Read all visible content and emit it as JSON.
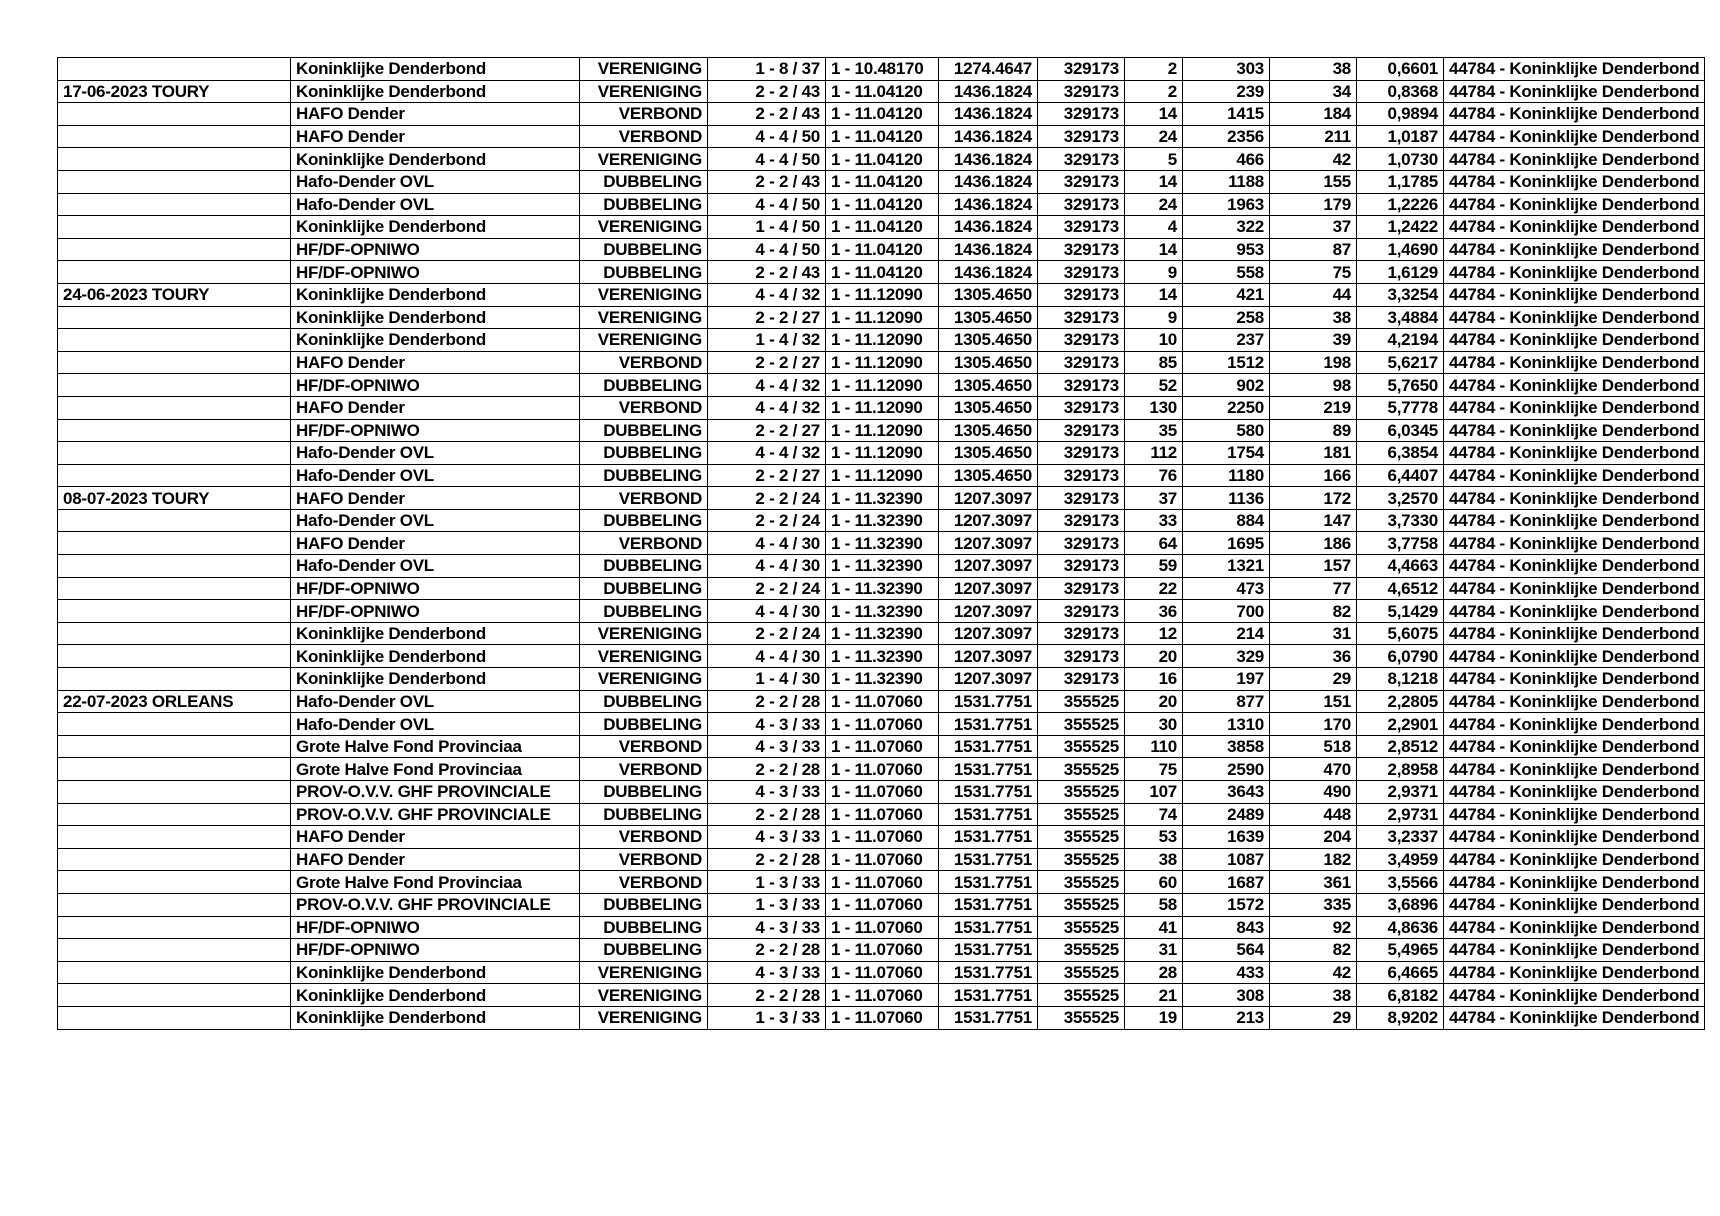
{
  "table": {
    "rows": [
      [
        "",
        "Koninklijke Denderbond",
        "VERENIGING",
        "1 - 8 / 37",
        "1 - 10.48170",
        "1274.4647",
        "329173",
        "2",
        "303",
        "38",
        "0,6601",
        "44784 - Koninklijke Denderbond"
      ],
      [
        "17-06-2023 TOURY",
        "Koninklijke Denderbond",
        "VERENIGING",
        "2 - 2 / 43",
        "1 - 11.04120",
        "1436.1824",
        "329173",
        "2",
        "239",
        "34",
        "0,8368",
        "44784 - Koninklijke Denderbond"
      ],
      [
        "",
        "HAFO Dender",
        "VERBOND",
        "2 - 2 / 43",
        "1 - 11.04120",
        "1436.1824",
        "329173",
        "14",
        "1415",
        "184",
        "0,9894",
        "44784 - Koninklijke Denderbond"
      ],
      [
        "",
        "HAFO Dender",
        "VERBOND",
        "4 - 4 / 50",
        "1 - 11.04120",
        "1436.1824",
        "329173",
        "24",
        "2356",
        "211",
        "1,0187",
        "44784 - Koninklijke Denderbond"
      ],
      [
        "",
        "Koninklijke Denderbond",
        "VERENIGING",
        "4 - 4 / 50",
        "1 - 11.04120",
        "1436.1824",
        "329173",
        "5",
        "466",
        "42",
        "1,0730",
        "44784 - Koninklijke Denderbond"
      ],
      [
        "",
        "Hafo-Dender OVL",
        "DUBBELING",
        "2 - 2 / 43",
        "1 - 11.04120",
        "1436.1824",
        "329173",
        "14",
        "1188",
        "155",
        "1,1785",
        "44784 - Koninklijke Denderbond"
      ],
      [
        "",
        "Hafo-Dender OVL",
        "DUBBELING",
        "4 - 4 / 50",
        "1 - 11.04120",
        "1436.1824",
        "329173",
        "24",
        "1963",
        "179",
        "1,2226",
        "44784 - Koninklijke Denderbond"
      ],
      [
        "",
        "Koninklijke Denderbond",
        "VERENIGING",
        "1 - 4 / 50",
        "1 - 11.04120",
        "1436.1824",
        "329173",
        "4",
        "322",
        "37",
        "1,2422",
        "44784 - Koninklijke Denderbond"
      ],
      [
        "",
        "HF/DF-OPNIWO",
        "DUBBELING",
        "4 - 4 / 50",
        "1 - 11.04120",
        "1436.1824",
        "329173",
        "14",
        "953",
        "87",
        "1,4690",
        "44784 - Koninklijke Denderbond"
      ],
      [
        "",
        "HF/DF-OPNIWO",
        "DUBBELING",
        "2 - 2 / 43",
        "1 - 11.04120",
        "1436.1824",
        "329173",
        "9",
        "558",
        "75",
        "1,6129",
        "44784 - Koninklijke Denderbond"
      ],
      [
        "24-06-2023 TOURY",
        "Koninklijke Denderbond",
        "VERENIGING",
        "4 - 4 / 32",
        "1 - 11.12090",
        "1305.4650",
        "329173",
        "14",
        "421",
        "44",
        "3,3254",
        "44784 - Koninklijke Denderbond"
      ],
      [
        "",
        "Koninklijke Denderbond",
        "VERENIGING",
        "2 - 2 / 27",
        "1 - 11.12090",
        "1305.4650",
        "329173",
        "9",
        "258",
        "38",
        "3,4884",
        "44784 - Koninklijke Denderbond"
      ],
      [
        "",
        "Koninklijke Denderbond",
        "VERENIGING",
        "1 - 4 / 32",
        "1 - 11.12090",
        "1305.4650",
        "329173",
        "10",
        "237",
        "39",
        "4,2194",
        "44784 - Koninklijke Denderbond"
      ],
      [
        "",
        "HAFO Dender",
        "VERBOND",
        "2 - 2 / 27",
        "1 - 11.12090",
        "1305.4650",
        "329173",
        "85",
        "1512",
        "198",
        "5,6217",
        "44784 - Koninklijke Denderbond"
      ],
      [
        "",
        "HF/DF-OPNIWO",
        "DUBBELING",
        "4 - 4 / 32",
        "1 - 11.12090",
        "1305.4650",
        "329173",
        "52",
        "902",
        "98",
        "5,7650",
        "44784 - Koninklijke Denderbond"
      ],
      [
        "",
        "HAFO Dender",
        "VERBOND",
        "4 - 4 / 32",
        "1 - 11.12090",
        "1305.4650",
        "329173",
        "130",
        "2250",
        "219",
        "5,7778",
        "44784 - Koninklijke Denderbond"
      ],
      [
        "",
        "HF/DF-OPNIWO",
        "DUBBELING",
        "2 - 2 / 27",
        "1 - 11.12090",
        "1305.4650",
        "329173",
        "35",
        "580",
        "89",
        "6,0345",
        "44784 - Koninklijke Denderbond"
      ],
      [
        "",
        "Hafo-Dender OVL",
        "DUBBELING",
        "4 - 4 / 32",
        "1 - 11.12090",
        "1305.4650",
        "329173",
        "112",
        "1754",
        "181",
        "6,3854",
        "44784 - Koninklijke Denderbond"
      ],
      [
        "",
        "Hafo-Dender OVL",
        "DUBBELING",
        "2 - 2 / 27",
        "1 - 11.12090",
        "1305.4650",
        "329173",
        "76",
        "1180",
        "166",
        "6,4407",
        "44784 - Koninklijke Denderbond"
      ],
      [
        "08-07-2023 TOURY",
        "HAFO Dender",
        "VERBOND",
        "2 - 2 / 24",
        "1 - 11.32390",
        "1207.3097",
        "329173",
        "37",
        "1136",
        "172",
        "3,2570",
        "44784 - Koninklijke Denderbond"
      ],
      [
        "",
        "Hafo-Dender OVL",
        "DUBBELING",
        "2 - 2 / 24",
        "1 - 11.32390",
        "1207.3097",
        "329173",
        "33",
        "884",
        "147",
        "3,7330",
        "44784 - Koninklijke Denderbond"
      ],
      [
        "",
        "HAFO Dender",
        "VERBOND",
        "4 - 4 / 30",
        "1 - 11.32390",
        "1207.3097",
        "329173",
        "64",
        "1695",
        "186",
        "3,7758",
        "44784 - Koninklijke Denderbond"
      ],
      [
        "",
        "Hafo-Dender OVL",
        "DUBBELING",
        "4 - 4 / 30",
        "1 - 11.32390",
        "1207.3097",
        "329173",
        "59",
        "1321",
        "157",
        "4,4663",
        "44784 - Koninklijke Denderbond"
      ],
      [
        "",
        "HF/DF-OPNIWO",
        "DUBBELING",
        "2 - 2 / 24",
        "1 - 11.32390",
        "1207.3097",
        "329173",
        "22",
        "473",
        "77",
        "4,6512",
        "44784 - Koninklijke Denderbond"
      ],
      [
        "",
        "HF/DF-OPNIWO",
        "DUBBELING",
        "4 - 4 / 30",
        "1 - 11.32390",
        "1207.3097",
        "329173",
        "36",
        "700",
        "82",
        "5,1429",
        "44784 - Koninklijke Denderbond"
      ],
      [
        "",
        "Koninklijke Denderbond",
        "VERENIGING",
        "2 - 2 / 24",
        "1 - 11.32390",
        "1207.3097",
        "329173",
        "12",
        "214",
        "31",
        "5,6075",
        "44784 - Koninklijke Denderbond"
      ],
      [
        "",
        "Koninklijke Denderbond",
        "VERENIGING",
        "4 - 4 / 30",
        "1 - 11.32390",
        "1207.3097",
        "329173",
        "20",
        "329",
        "36",
        "6,0790",
        "44784 - Koninklijke Denderbond"
      ],
      [
        "",
        "Koninklijke Denderbond",
        "VERENIGING",
        "1 - 4 / 30",
        "1 - 11.32390",
        "1207.3097",
        "329173",
        "16",
        "197",
        "29",
        "8,1218",
        "44784 - Koninklijke Denderbond"
      ],
      [
        "22-07-2023 ORLEANS",
        "Hafo-Dender OVL",
        "DUBBELING",
        "2 - 2 / 28",
        "1 - 11.07060",
        "1531.7751",
        "355525",
        "20",
        "877",
        "151",
        "2,2805",
        "44784 - Koninklijke Denderbond"
      ],
      [
        "",
        "Hafo-Dender OVL",
        "DUBBELING",
        "4 - 3 / 33",
        "1 - 11.07060",
        "1531.7751",
        "355525",
        "30",
        "1310",
        "170",
        "2,2901",
        "44784 - Koninklijke Denderbond"
      ],
      [
        "",
        "Grote Halve Fond Provinciaa",
        "VERBOND",
        "4 - 3 / 33",
        "1 - 11.07060",
        "1531.7751",
        "355525",
        "110",
        "3858",
        "518",
        "2,8512",
        "44784 - Koninklijke Denderbond"
      ],
      [
        "",
        "Grote Halve Fond Provinciaa",
        "VERBOND",
        "2 - 2 / 28",
        "1 - 11.07060",
        "1531.7751",
        "355525",
        "75",
        "2590",
        "470",
        "2,8958",
        "44784 - Koninklijke Denderbond"
      ],
      [
        "",
        "PROV-O.V.V. GHF PROVINCIALE",
        "DUBBELING",
        "4 - 3 / 33",
        "1 - 11.07060",
        "1531.7751",
        "355525",
        "107",
        "3643",
        "490",
        "2,9371",
        "44784 - Koninklijke Denderbond"
      ],
      [
        "",
        "PROV-O.V.V. GHF PROVINCIALE",
        "DUBBELING",
        "2 - 2 / 28",
        "1 - 11.07060",
        "1531.7751",
        "355525",
        "74",
        "2489",
        "448",
        "2,9731",
        "44784 - Koninklijke Denderbond"
      ],
      [
        "",
        "HAFO Dender",
        "VERBOND",
        "4 - 3 / 33",
        "1 - 11.07060",
        "1531.7751",
        "355525",
        "53",
        "1639",
        "204",
        "3,2337",
        "44784 - Koninklijke Denderbond"
      ],
      [
        "",
        "HAFO Dender",
        "VERBOND",
        "2 - 2 / 28",
        "1 - 11.07060",
        "1531.7751",
        "355525",
        "38",
        "1087",
        "182",
        "3,4959",
        "44784 - Koninklijke Denderbond"
      ],
      [
        "",
        "Grote Halve Fond Provinciaa",
        "VERBOND",
        "1 - 3 / 33",
        "1 - 11.07060",
        "1531.7751",
        "355525",
        "60",
        "1687",
        "361",
        "3,5566",
        "44784 - Koninklijke Denderbond"
      ],
      [
        "",
        "PROV-O.V.V. GHF PROVINCIALE",
        "DUBBELING",
        "1 - 3 / 33",
        "1 - 11.07060",
        "1531.7751",
        "355525",
        "58",
        "1572",
        "335",
        "3,6896",
        "44784 - Koninklijke Denderbond"
      ],
      [
        "",
        "HF/DF-OPNIWO",
        "DUBBELING",
        "4 - 3 / 33",
        "1 - 11.07060",
        "1531.7751",
        "355525",
        "41",
        "843",
        "92",
        "4,8636",
        "44784 - Koninklijke Denderbond"
      ],
      [
        "",
        "HF/DF-OPNIWO",
        "DUBBELING",
        "2 - 2 / 28",
        "1 - 11.07060",
        "1531.7751",
        "355525",
        "31",
        "564",
        "82",
        "5,4965",
        "44784 - Koninklijke Denderbond"
      ],
      [
        "",
        "Koninklijke Denderbond",
        "VERENIGING",
        "4 - 3 / 33",
        "1 - 11.07060",
        "1531.7751",
        "355525",
        "28",
        "433",
        "42",
        "6,4665",
        "44784 - Koninklijke Denderbond"
      ],
      [
        "",
        "Koninklijke Denderbond",
        "VERENIGING",
        "2 - 2 / 28",
        "1 - 11.07060",
        "1531.7751",
        "355525",
        "21",
        "308",
        "38",
        "6,8182",
        "44784 - Koninklijke Denderbond"
      ],
      [
        "",
        "Koninklijke Denderbond",
        "VERENIGING",
        "1 - 3 / 33",
        "1 - 11.07060",
        "1531.7751",
        "355525",
        "19",
        "213",
        "29",
        "8,9202",
        "44784 - Koninklijke Denderbond"
      ]
    ]
  }
}
